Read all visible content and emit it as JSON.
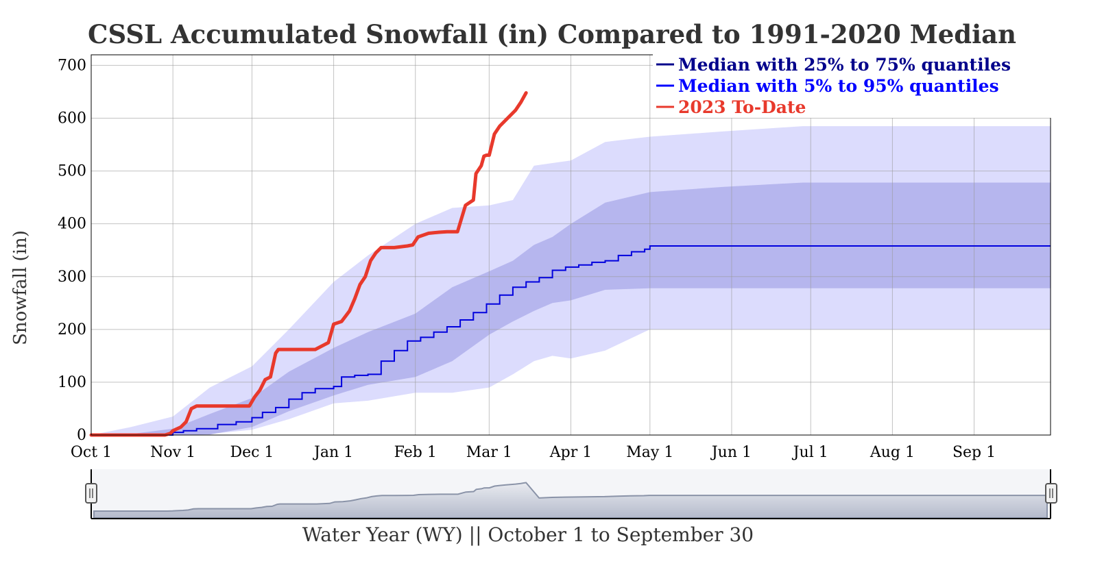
{
  "chart_data": {
    "type": "line",
    "title": "CSSL Accumulated Snowfall (in) Compared to 1991-2020 Median",
    "ylabel": "Snowfall (in)",
    "xlabel": "Water Year (WY) || October 1 to September 30",
    "ylim": [
      0,
      720
    ],
    "yticks": [
      0,
      100,
      200,
      300,
      400,
      500,
      600,
      700
    ],
    "xlim_day": [
      0,
      364
    ],
    "xticks": [
      {
        "day": 0,
        "label": "Oct 1"
      },
      {
        "day": 31,
        "label": "Nov 1"
      },
      {
        "day": 61,
        "label": "Dec 1"
      },
      {
        "day": 92,
        "label": "Jan 1"
      },
      {
        "day": 123,
        "label": "Feb 1"
      },
      {
        "day": 151,
        "label": "Mar 1"
      },
      {
        "day": 182,
        "label": "Apr 1"
      },
      {
        "day": 212,
        "label": "May 1"
      },
      {
        "day": 243,
        "label": "Jun 1"
      },
      {
        "day": 273,
        "label": "Jul 1"
      },
      {
        "day": 304,
        "label": "Aug 1"
      },
      {
        "day": 335,
        "label": "Sep 1"
      }
    ],
    "grid": true,
    "legend_position": "top-right",
    "legend": [
      {
        "label": "Median with 25% to 75% quantiles",
        "color": "#00008b"
      },
      {
        "label": "Median with 5% to 95% quantiles",
        "color": "#0000ff"
      },
      {
        "label": "2023 To-Date",
        "color": "#e8392c"
      }
    ],
    "colors": {
      "band_outer": "#dcdcfd",
      "band_inner": "#b6b6ee",
      "median": "#0000dd",
      "current": "#e8392c"
    },
    "band_5_95": {
      "day": [
        0,
        15,
        31,
        45,
        61,
        75,
        92,
        105,
        123,
        137,
        151,
        160,
        168,
        175,
        182,
        195,
        212,
        240,
        270,
        300,
        330,
        364
      ],
      "low": [
        0,
        0,
        0,
        2,
        10,
        30,
        60,
        65,
        80,
        80,
        90,
        115,
        140,
        150,
        145,
        160,
        200,
        200,
        200,
        200,
        200,
        200
      ],
      "high": [
        0,
        15,
        35,
        90,
        130,
        200,
        290,
        340,
        400,
        430,
        435,
        445,
        510,
        515,
        520,
        555,
        565,
        575,
        585,
        585,
        585,
        585
      ]
    },
    "band_25_75": {
      "day": [
        0,
        15,
        31,
        45,
        61,
        75,
        92,
        105,
        123,
        137,
        151,
        160,
        168,
        175,
        182,
        195,
        212,
        240,
        270,
        300,
        330,
        364
      ],
      "low": [
        0,
        0,
        0,
        1,
        15,
        45,
        75,
        95,
        110,
        140,
        190,
        215,
        235,
        250,
        255,
        275,
        278,
        278,
        278,
        278,
        278,
        278
      ],
      "high": [
        0,
        2,
        12,
        40,
        70,
        120,
        165,
        195,
        230,
        280,
        310,
        330,
        360,
        375,
        400,
        440,
        460,
        470,
        478,
        478,
        478,
        478
      ]
    },
    "series": [
      {
        "name": "Median",
        "day": [
          0,
          25,
          31,
          35,
          40,
          48,
          55,
          61,
          65,
          70,
          75,
          80,
          85,
          92,
          95,
          100,
          105,
          110,
          115,
          120,
          125,
          130,
          135,
          140,
          145,
          150,
          155,
          160,
          165,
          170,
          175,
          180,
          185,
          190,
          195,
          200,
          205,
          210,
          212,
          240,
          270,
          300,
          330,
          364
        ],
        "values": [
          0,
          0,
          5,
          8,
          12,
          20,
          25,
          33,
          43,
          52,
          68,
          80,
          88,
          92,
          110,
          113,
          115,
          140,
          160,
          178,
          185,
          195,
          205,
          218,
          232,
          248,
          265,
          280,
          290,
          298,
          312,
          318,
          322,
          327,
          330,
          340,
          347,
          352,
          358,
          358,
          358,
          358,
          358,
          358
        ]
      },
      {
        "name": "2023 To-Date",
        "day": [
          0,
          10,
          20,
          28,
          30,
          31,
          34,
          36,
          38,
          40,
          55,
          60,
          62,
          64,
          66,
          68,
          70,
          71,
          73,
          78,
          85,
          90,
          92,
          95,
          98,
          100,
          102,
          104,
          106,
          108,
          110,
          112,
          115,
          120,
          122,
          124,
          128,
          132,
          135,
          139,
          142,
          145,
          146,
          148,
          149,
          150,
          151,
          153,
          155,
          157,
          159,
          161,
          163,
          165
        ],
        "values": [
          0,
          0,
          0,
          0,
          3,
          8,
          15,
          25,
          50,
          55,
          55,
          55,
          72,
          85,
          105,
          110,
          155,
          162,
          162,
          162,
          162,
          175,
          210,
          215,
          235,
          258,
          285,
          300,
          330,
          345,
          355,
          355,
          355,
          358,
          360,
          375,
          382,
          384,
          385,
          385,
          435,
          445,
          495,
          510,
          528,
          530,
          530,
          570,
          585,
          595,
          605,
          615,
          630,
          648
        ]
      }
    ]
  }
}
